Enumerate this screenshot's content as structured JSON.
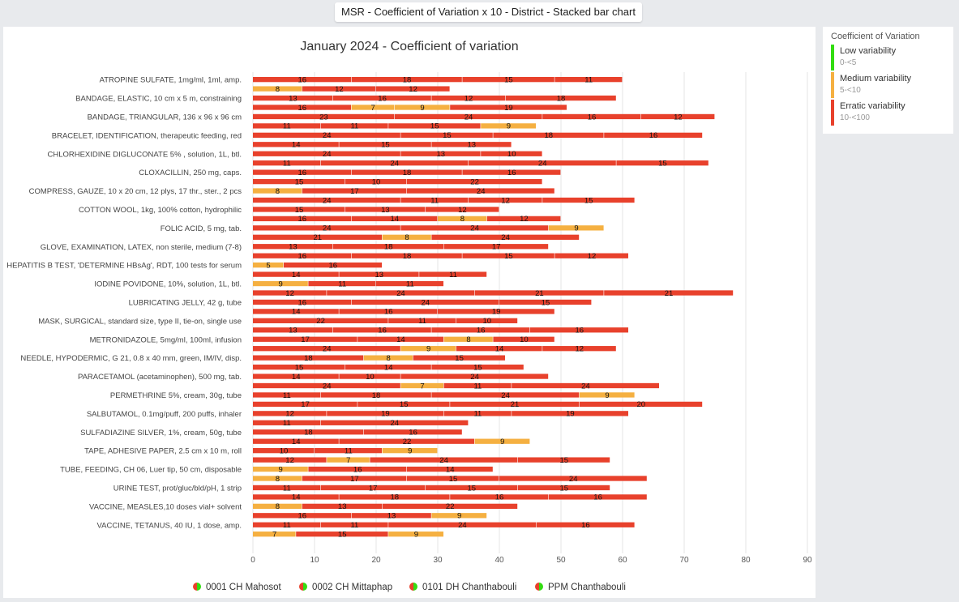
{
  "window": {
    "title": "MSR - Coefficient of Variation x 10 - District - Stacked bar chart"
  },
  "legend": {
    "title": "Coefficient of Variation",
    "items": [
      {
        "label": "Low variability",
        "range": "0-<5",
        "color": "#33dd11"
      },
      {
        "label": "Medium variability",
        "range": "5-<10",
        "color": "#f5b041"
      },
      {
        "label": "Erratic variability",
        "range": "10-<100",
        "color": "#e8412c"
      }
    ]
  },
  "colors": {
    "low": "#33dd11",
    "medium": "#f5b041",
    "erratic": "#e8412c",
    "grid": "#e6e6e6",
    "axis_text": "#555555"
  },
  "chart_data": {
    "type": "bar",
    "orientation": "horizontal",
    "stacked": true,
    "title": "January 2024 - Coefficient of variation",
    "xlim": [
      0,
      90
    ],
    "xticks": [
      0,
      10,
      20,
      30,
      40,
      50,
      60,
      70,
      80,
      90
    ],
    "grid": true,
    "legend_position": "bottom",
    "series": [
      {
        "name": "0001 CH Mahosot"
      },
      {
        "name": "0002 CH Mittaphap"
      },
      {
        "name": "0101 DH Chanthabouli"
      },
      {
        "name": "PPM Chanthabouli"
      }
    ],
    "categories": [
      {
        "label": "ATROPINE SULFATE, 1mg/ml, 1ml, amp.",
        "rows": [
          [
            16,
            18,
            15,
            11
          ],
          [
            8,
            12,
            12
          ]
        ]
      },
      {
        "label": "BANDAGE, ELASTIC, 10 cm x 5 m, constraining",
        "rows": [
          [
            13,
            16,
            12,
            18
          ],
          [
            16,
            7,
            9,
            19
          ]
        ]
      },
      {
        "label": "BANDAGE, TRIANGULAR, 136 x 96 x 96 cm",
        "rows": [
          [
            23,
            24,
            16,
            12
          ],
          [
            11,
            11,
            15,
            9
          ]
        ]
      },
      {
        "label": "BRACELET, IDENTIFICATION, therapeutic feeding, red",
        "rows": [
          [
            24,
            15,
            18,
            16
          ],
          [
            14,
            15,
            13
          ]
        ]
      },
      {
        "label": "CHLORHEXIDINE DIGLUCONATE 5% , solution, 1L, btl.",
        "rows": [
          [
            24,
            13,
            10
          ],
          [
            11,
            24,
            24,
            15
          ]
        ]
      },
      {
        "label": "CLOXACILLIN, 250 mg, caps.",
        "rows": [
          [
            16,
            18,
            16
          ],
          [
            15,
            10,
            22
          ]
        ]
      },
      {
        "label": "COMPRESS, GAUZE, 10 x 20 cm, 12 plys, 17 thr., ster., 2 pcs",
        "rows": [
          [
            8,
            17,
            24
          ],
          [
            24,
            11,
            12,
            15
          ]
        ]
      },
      {
        "label": "COTTON WOOL, 1kg, 100% cotton, hydrophilic",
        "rows": [
          [
            15,
            13,
            12
          ],
          [
            16,
            14,
            8,
            12
          ]
        ]
      },
      {
        "label": "FOLIC ACID, 5 mg, tab.",
        "rows": [
          [
            24,
            24,
            9
          ],
          [
            21,
            8,
            24
          ]
        ]
      },
      {
        "label": "GLOVE, EXAMINATION, LATEX, non sterile, medium (7-8)",
        "rows": [
          [
            13,
            18,
            17
          ],
          [
            16,
            18,
            15,
            12
          ]
        ]
      },
      {
        "label": "HEPATITIS B TEST, 'DETERMINE HBsAg', RDT, 100 tests for serum",
        "rows": [
          [
            5,
            16
          ],
          [
            14,
            13,
            11
          ]
        ]
      },
      {
        "label": "IODINE POVIDONE, 10%, solution, 1L, btl.",
        "rows": [
          [
            9,
            11,
            11
          ],
          [
            12,
            24,
            21,
            21
          ]
        ]
      },
      {
        "label": "LUBRICATING JELLY, 42 g, tube",
        "rows": [
          [
            16,
            24,
            15
          ],
          [
            14,
            16,
            19
          ]
        ]
      },
      {
        "label": "MASK, SURGICAL, standard size, type II, tie-on, single use",
        "rows": [
          [
            22,
            11,
            10
          ],
          [
            13,
            16,
            16,
            16
          ]
        ]
      },
      {
        "label": "METRONIDAZOLE, 5mg/ml, 100ml, infusion",
        "rows": [
          [
            17,
            14,
            8,
            10
          ],
          [
            24,
            9,
            14,
            12
          ]
        ]
      },
      {
        "label": "NEEDLE, HYPODERMIC, G 21, 0.8 x 40 mm, green, IM/IV, disp.",
        "rows": [
          [
            18,
            8,
            15
          ],
          [
            15,
            14,
            15
          ]
        ]
      },
      {
        "label": "PARACETAMOL (acetaminophen), 500 mg, tab.",
        "rows": [
          [
            14,
            10,
            24
          ],
          [
            24,
            7,
            11,
            24
          ]
        ]
      },
      {
        "label": "PERMETHRINE 5%, cream, 30g, tube",
        "rows": [
          [
            11,
            18,
            24,
            9
          ],
          [
            17,
            15,
            21,
            20
          ]
        ]
      },
      {
        "label": "SALBUTAMOL, 0.1mg/puff, 200 puffs, inhaler",
        "rows": [
          [
            12,
            19,
            11,
            19
          ],
          [
            11,
            24
          ]
        ]
      },
      {
        "label": "SULFADIAZINE SILVER, 1%, cream, 50g, tube",
        "rows": [
          [
            18,
            16
          ],
          [
            14,
            22,
            9
          ]
        ]
      },
      {
        "label": "TAPE, ADHESIVE PAPER, 2.5 cm x 10 m, roll",
        "rows": [
          [
            10,
            11,
            9
          ],
          [
            12,
            7,
            24,
            15
          ]
        ]
      },
      {
        "label": "TUBE, FEEDING, CH 06, Luer tip, 50 cm, disposable",
        "rows": [
          [
            9,
            16,
            14
          ],
          [
            8,
            17,
            15,
            24
          ]
        ]
      },
      {
        "label": "URINE TEST, prot/gluc/bld/pH, 1 strip",
        "rows": [
          [
            11,
            17,
            15,
            15
          ],
          [
            14,
            18,
            16,
            16
          ]
        ]
      },
      {
        "label": "VACCINE, MEASLES,10 doses vial+ solvent",
        "rows": [
          [
            8,
            13,
            22
          ],
          [
            16,
            13,
            9
          ]
        ]
      },
      {
        "label": "VACCINE, TETANUS, 40 IU, 1 dose, amp.",
        "rows": [
          [
            11,
            11,
            24,
            16
          ],
          [
            7,
            15,
            9
          ]
        ]
      }
    ]
  }
}
